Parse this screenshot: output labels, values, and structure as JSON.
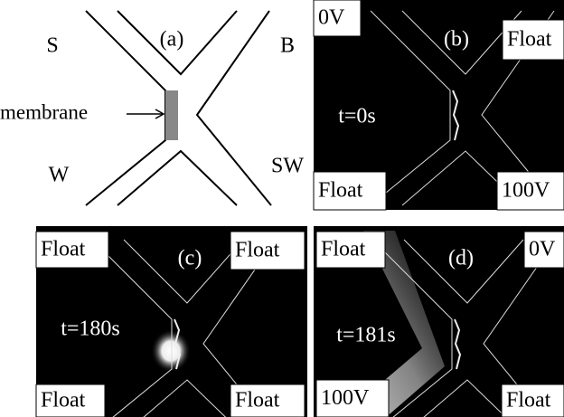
{
  "panels": [
    {
      "label": "(a)",
      "ports": [
        "S",
        "B",
        "W",
        "SW"
      ],
      "membrane": "membrane"
    },
    {
      "label": "(b)",
      "time": "t=0s",
      "corners": [
        "0V",
        "Float",
        "Float",
        "100V"
      ]
    },
    {
      "label": "(c)",
      "time": "t=180s",
      "corners": [
        "Float",
        "Float",
        "Float",
        "Float"
      ]
    },
    {
      "label": "(d)",
      "time": "t=181s",
      "corners": [
        "Float",
        "0V",
        "100V",
        "Float"
      ]
    }
  ]
}
